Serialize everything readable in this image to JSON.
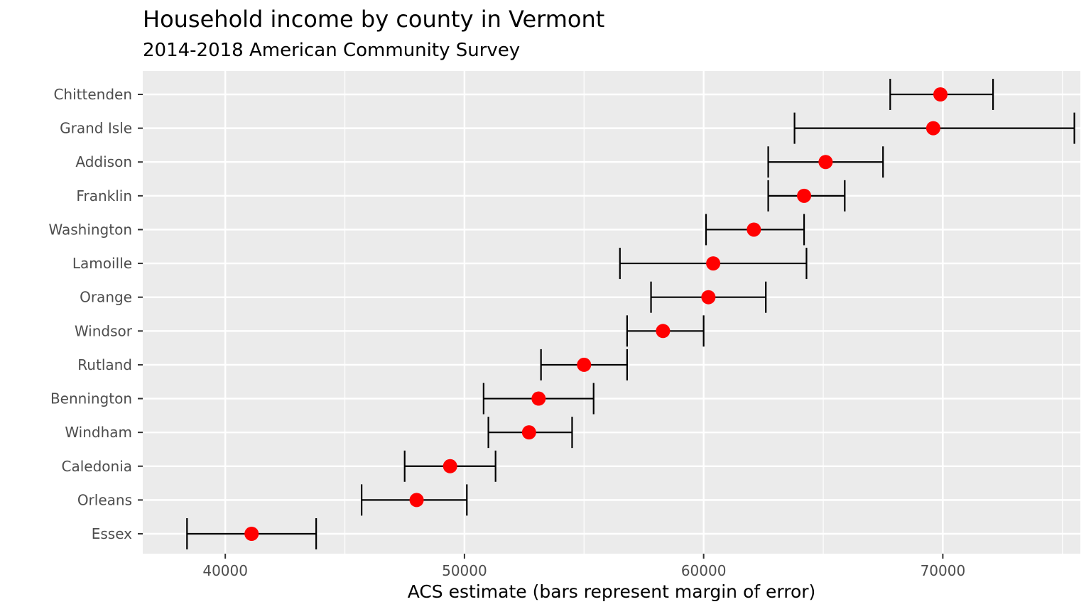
{
  "chart_data": {
    "type": "errorbar-scatter",
    "title": "Household income by county in Vermont",
    "subtitle": "2014-2018 American Community Survey",
    "xlabel": "ACS estimate (bars represent margin of error)",
    "ylabel": "",
    "xlim": [
      36550,
      75750
    ],
    "xticks": [
      40000,
      50000,
      60000,
      70000
    ],
    "grid": true,
    "point_color": "#ff0000",
    "bar_color": "#000000",
    "panel_background": "#ebebeb",
    "grid_color": "#ffffff",
    "categories": [
      "Chittenden",
      "Grand Isle",
      "Addison",
      "Franklin",
      "Washington",
      "Lamoille",
      "Orange",
      "Windsor",
      "Rutland",
      "Bennington",
      "Windham",
      "Caledonia",
      "Orleans",
      "Essex"
    ],
    "estimates": [
      69900,
      69600,
      65100,
      64200,
      62100,
      60400,
      60200,
      58300,
      55000,
      53100,
      52700,
      49400,
      48000,
      41100
    ],
    "lower": [
      67800,
      63800,
      62700,
      62700,
      60100,
      56500,
      57800,
      56800,
      53200,
      50800,
      51000,
      47500,
      45700,
      38400
    ],
    "upper": [
      72100,
      75500,
      67500,
      65900,
      64200,
      64300,
      62600,
      60000,
      56800,
      55400,
      54500,
      51300,
      50100,
      43800
    ]
  }
}
